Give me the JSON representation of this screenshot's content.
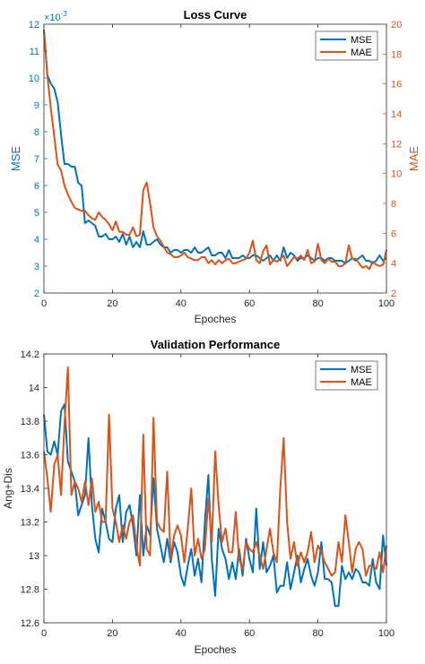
{
  "chart_data": [
    {
      "type": "line",
      "title": "Loss Curve",
      "xlabel": "Epoches",
      "ylabel_left": "MSE",
      "ylabel_right": "MAE",
      "left_exponent_label": "×10",
      "left_exponent_power": "-3",
      "xlim": [
        0,
        100
      ],
      "ylim_left": [
        2,
        12
      ],
      "ylim_right": [
        2,
        20
      ],
      "xticks": [
        "0",
        "20",
        "40",
        "60",
        "80",
        "100"
      ],
      "yticks_left": [
        "2",
        "3",
        "4",
        "5",
        "6",
        "7",
        "8",
        "9",
        "10",
        "11",
        "12"
      ],
      "yticks_right": [
        "2",
        "4",
        "6",
        "8",
        "10",
        "12",
        "14",
        "16",
        "18",
        "20"
      ],
      "grid": false,
      "legend_position": "top-right",
      "left_axis_color": "#0072BD",
      "right_axis_color": "#D95319",
      "series": [
        {
          "name": "MSE",
          "axis": "left",
          "color": "#0072BD",
          "values": [
            11.8,
            10.1,
            9.8,
            9.6,
            9.1,
            7.9,
            6.8,
            6.8,
            6.7,
            6.7,
            6.1,
            6.0,
            4.6,
            4.7,
            4.6,
            4.5,
            4.1,
            4.1,
            4.2,
            4.0,
            4.0,
            4.1,
            3.9,
            4.2,
            3.8,
            4.1,
            3.7,
            3.9,
            3.7,
            4.3,
            3.8,
            3.8,
            3.9,
            4.0,
            3.8,
            3.7,
            3.7,
            3.5,
            3.6,
            3.6,
            3.5,
            3.6,
            3.6,
            3.5,
            3.7,
            3.5,
            3.5,
            3.6,
            3.7,
            3.4,
            3.4,
            3.5,
            3.5,
            3.3,
            3.6,
            3.3,
            3.3,
            3.3,
            3.4,
            3.3,
            3.3,
            3.4,
            3.4,
            3.3,
            3.2,
            3.3,
            3.4,
            3.2,
            3.4,
            3.2,
            3.7,
            3.3,
            3.5,
            3.4,
            3.2,
            3.3,
            3.3,
            3.4,
            3.3,
            3.2,
            3.3,
            3.3,
            3.2,
            3.3,
            3.3,
            3.2,
            3.2,
            3.2,
            3.1,
            3.2,
            3.3,
            3.2,
            3.3,
            3.4,
            3.2,
            3.2,
            3.1,
            3.2,
            3.4,
            3.2,
            3.3
          ]
        },
        {
          "name": "MAE",
          "axis": "right",
          "color": "#D95319",
          "values": [
            19.6,
            16.6,
            14.4,
            12.5,
            10.6,
            10.2,
            9.2,
            8.6,
            8.1,
            7.7,
            7.6,
            7.5,
            7.5,
            7.2,
            7.0,
            6.9,
            7.4,
            7.1,
            6.9,
            6.6,
            6.2,
            6.8,
            6.1,
            6.1,
            5.9,
            5.9,
            6.4,
            5.8,
            5.9,
            8.9,
            9.4,
            8.0,
            6.4,
            5.8,
            5.5,
            5.1,
            4.7,
            4.6,
            4.4,
            4.4,
            4.5,
            4.7,
            4.4,
            4.3,
            4.2,
            4.2,
            4.4,
            4.4,
            4.0,
            4.2,
            3.9,
            4.2,
            4.0,
            4.2,
            4.3,
            4.0,
            4.0,
            4.1,
            4.2,
            4.3,
            4.7,
            5.5,
            4.2,
            4.0,
            4.8,
            5.2,
            3.9,
            4.2,
            4.1,
            4.3,
            4.5,
            3.8,
            4.1,
            4.4,
            4.3,
            4.5,
            4.2,
            4.9,
            4.0,
            4.1,
            5.3,
            4.2,
            4.0,
            4.3,
            4.1,
            4.1,
            3.8,
            3.8,
            4.0,
            5.2,
            4.3,
            4.3,
            4.0,
            3.7,
            3.8,
            3.6,
            4.1,
            3.9,
            3.8,
            3.9,
            4.9
          ]
        }
      ]
    },
    {
      "type": "line",
      "title": "Validation Performance",
      "xlabel": "Epoches",
      "ylabel": "Ang+Dis",
      "xlim": [
        0,
        100
      ],
      "ylim": [
        12.6,
        14.2
      ],
      "xticks": [
        "0",
        "20",
        "40",
        "60",
        "80",
        "100"
      ],
      "yticks": [
        "12.6",
        "12.8",
        "13",
        "13.2",
        "13.4",
        "13.6",
        "13.8",
        "14",
        "14.2"
      ],
      "grid": false,
      "legend_position": "top-right",
      "series": [
        {
          "name": "MSE",
          "color": "#0072BD",
          "values": [
            13.84,
            13.62,
            13.6,
            13.68,
            13.6,
            13.86,
            13.9,
            13.56,
            13.5,
            13.44,
            13.24,
            13.3,
            13.36,
            13.7,
            13.3,
            13.1,
            13.02,
            13.28,
            13.2,
            13.1,
            13.08,
            13.28,
            13.36,
            13.08,
            13.26,
            13.3,
            13.18,
            13.0,
            13.36,
            13.0,
            13.18,
            13.12,
            13.46,
            13.16,
            13.06,
            12.96,
            13.1,
            12.96,
            13.08,
            13.02,
            12.88,
            12.82,
            12.94,
            13.04,
            12.88,
            12.98,
            12.84,
            13.2,
            13.48,
            12.98,
            12.76,
            13.16,
            13.04,
            12.98,
            12.86,
            12.96,
            12.86,
            13.04,
            12.88,
            13.1,
            12.98,
            12.9,
            13.28,
            12.92,
            13.08,
            12.9,
            12.94,
            13.0,
            12.78,
            12.82,
            12.82,
            12.96,
            12.8,
            12.9,
            13.0,
            12.84,
            12.92,
            12.98,
            12.88,
            12.82,
            12.9,
            13.08,
            12.86,
            12.86,
            12.84,
            12.7,
            12.7,
            12.94,
            12.86,
            12.9,
            12.86,
            12.92,
            12.9,
            12.84,
            12.84,
            12.82,
            12.98,
            12.84,
            12.8,
            13.12,
            12.94
          ]
        },
        {
          "name": "MAE",
          "color": "#D95319",
          "values": [
            13.62,
            13.46,
            13.26,
            13.54,
            13.6,
            13.36,
            13.78,
            14.12,
            13.36,
            13.44,
            13.4,
            13.32,
            13.44,
            13.3,
            13.46,
            13.26,
            13.32,
            13.2,
            13.2,
            13.84,
            13.28,
            13.2,
            13.08,
            13.18,
            13.1,
            13.2,
            13.24,
            13.06,
            12.94,
            13.72,
            13.04,
            13.0,
            13.82,
            13.2,
            13.16,
            13.14,
            13.5,
            12.98,
            13.12,
            13.18,
            13.12,
            12.96,
            13.16,
            13.4,
            13.0,
            13.1,
            12.98,
            13.04,
            13.34,
            13.08,
            13.62,
            13.3,
            13.08,
            13.16,
            13.02,
            13.02,
            13.26,
            12.98,
            12.92,
            13.08,
            13.04,
            13.02,
            13.08,
            13.0,
            12.92,
            13.04,
            13.16,
            13.02,
            12.96,
            13.4,
            13.7,
            13.2,
            12.98,
            13.08,
            12.94,
            13.02,
            12.96,
            13.02,
            13.14,
            12.96,
            13.06,
            13.02,
            12.96,
            12.92,
            12.88,
            12.9,
            13.08,
            12.96,
            13.24,
            13.08,
            12.9,
            13.04,
            13.08,
            13.04,
            12.88,
            12.94,
            12.94,
            12.92,
            13.02,
            12.9,
            13.06
          ]
        }
      ]
    }
  ]
}
